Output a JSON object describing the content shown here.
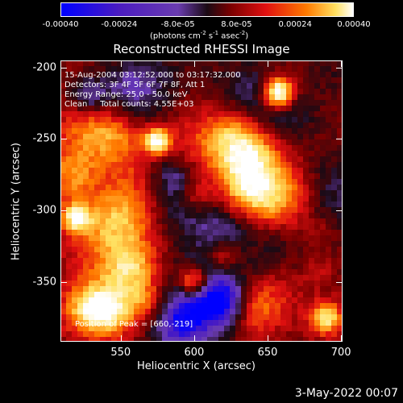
{
  "colorbar": {
    "ticks": [
      "-0.00040",
      "-0.00024",
      "-8.0e-05",
      "8.0e-05",
      "0.00024",
      "0.00040"
    ],
    "tick_values": [
      -0.0004,
      -0.00024,
      -8e-05,
      8e-05,
      0.00024,
      0.0004
    ],
    "unit_prefix": "(photons cm",
    "unit_exp1": "-2",
    "unit_mid": " s",
    "unit_exp2": "-1",
    "unit_mid2": " asec",
    "unit_exp3": "-2",
    "unit_suffix": ")"
  },
  "chart_data": {
    "type": "heatmap",
    "title": "Reconstructed RHESSI Image",
    "xlabel": "Heliocentric X (arcsec)",
    "ylabel": "Heliocentric Y (arcsec)",
    "xlim": [
      509,
      701
    ],
    "ylim": [
      -392,
      -195
    ],
    "xticks": [
      550,
      600,
      650,
      700
    ],
    "yticks": [
      -200,
      -250,
      -300,
      -350
    ],
    "clim": [
      -0.0004,
      0.0004
    ],
    "peak_position": [
      660,
      -219
    ],
    "colormap": [
      "#0000ff",
      "#4b1cc0",
      "#6a3cb0",
      "#1a0a14",
      "#7a0000",
      "#e01010",
      "#ff7a00",
      "#ffe060",
      "#ffffff"
    ]
  },
  "info": {
    "line1": "15-Aug-2004 03:12:52.000 to 03:17:32.000",
    "line2": "Detectors: 3F 4F 5F 6F 7F 8F, Att 1",
    "line3": "Energy Range: 25.0 - 50.0 keV",
    "line4": "Clean     Total counts: 4.55E+03",
    "peak": "Position of Peak = [660,-219]"
  },
  "date": "3-May-2022 00:07"
}
